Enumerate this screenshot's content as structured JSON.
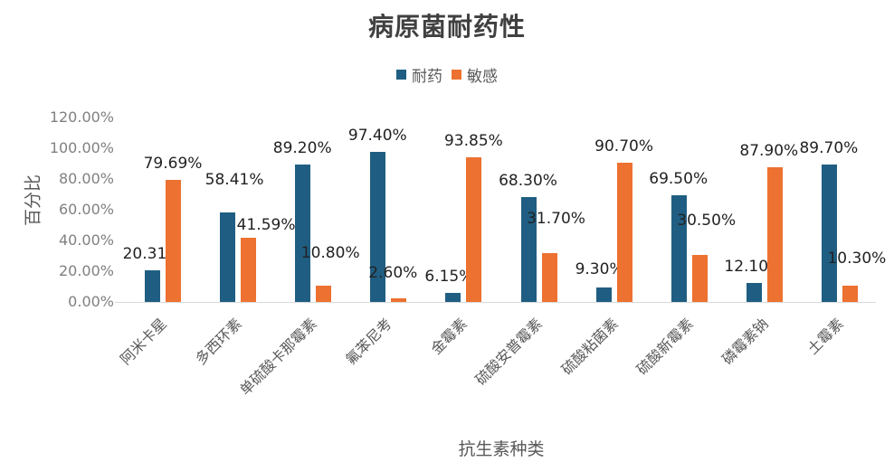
{
  "chart_data": {
    "type": "bar",
    "title": "病原菌耐药性",
    "xlabel": "抗生素种类",
    "ylabel": "百分比",
    "ylim": [
      0,
      1.2
    ],
    "yticks": [
      "0.00%",
      "20.00%",
      "40.00%",
      "60.00%",
      "80.00%",
      "100.00%",
      "120.00%"
    ],
    "grid": false,
    "legend_position": "top",
    "categories": [
      "阿米卡星",
      "多西环素",
      "单硫酸卡那霉素",
      "氟苯尼考",
      "金霉素",
      "硫酸安普霉素",
      "硫酸粘菌素",
      "硫酸新霉素",
      "磷霉素钠",
      "土霉素"
    ],
    "series": [
      {
        "name": "耐药",
        "color": "#1f5e82",
        "values": [
          20.31,
          58.41,
          89.2,
          97.4,
          6.15,
          68.3,
          9.3,
          69.5,
          12.1,
          89.7
        ],
        "labels": [
          "20.31%",
          "58.41%",
          "89.20%",
          "97.40%",
          "6.15%",
          "68.30%",
          "9.30%",
          "69.50%",
          "12.10%",
          "89.70%"
        ]
      },
      {
        "name": "敏感",
        "color": "#ed7130",
        "values": [
          79.69,
          41.59,
          10.8,
          2.6,
          93.85,
          31.7,
          90.7,
          30.5,
          87.9,
          10.3
        ],
        "labels": [
          "79.69%",
          "41.59%",
          "10.80%",
          "2.60%",
          "93.85%",
          "31.70%",
          "90.70%",
          "30.50%",
          "87.90%",
          "10.30%"
        ]
      }
    ]
  }
}
